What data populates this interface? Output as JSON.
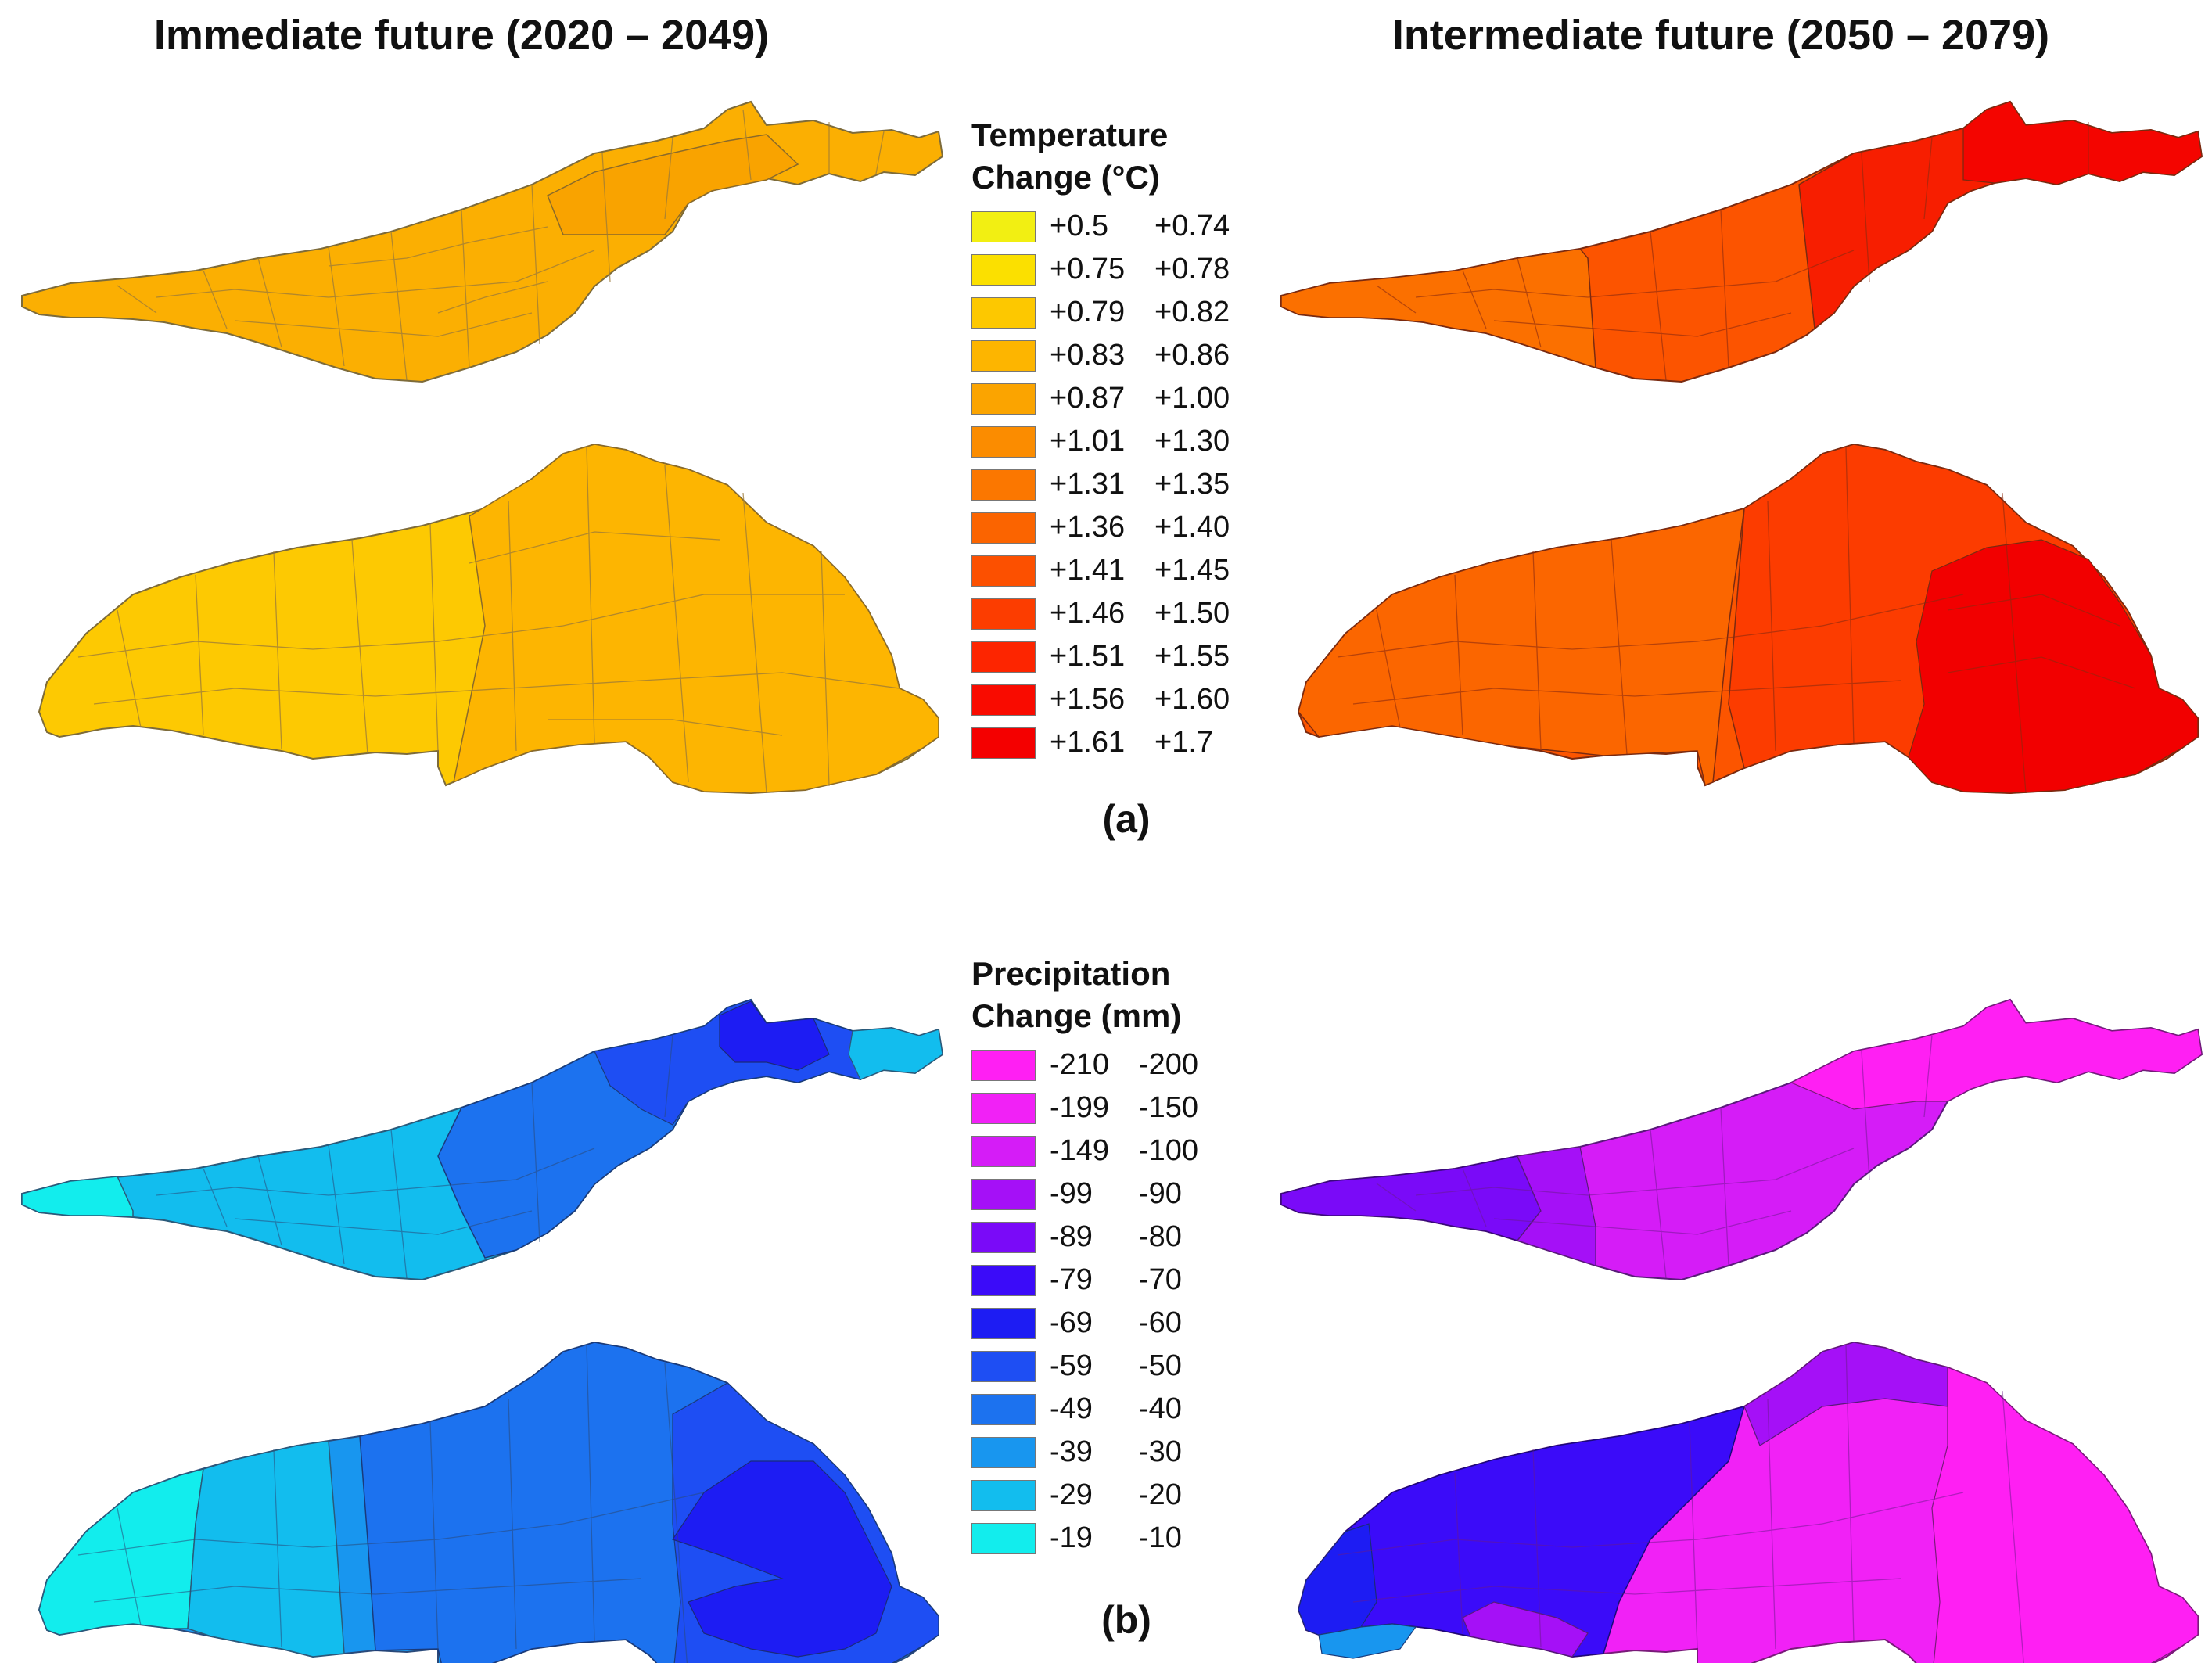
{
  "titles": {
    "left": "Immediate future (2020 – 2049)",
    "right": "Intermediate future (2050 – 2079)"
  },
  "panels": {
    "a": "(a)",
    "b": "(b)"
  },
  "temperature_legend": {
    "title_line1": "Temperature",
    "title_line2": "Change (°C)",
    "classes": [
      {
        "low": "+0.5",
        "high": "+0.74",
        "color": "#f2ef12"
      },
      {
        "low": "+0.75",
        "high": "+0.78",
        "color": "#fbe000"
      },
      {
        "low": "+0.79",
        "high": "+0.82",
        "color": "#fdc800"
      },
      {
        "low": "+0.83",
        "high": "+0.86",
        "color": "#fdb500"
      },
      {
        "low": "+0.87",
        "high": "+1.00",
        "color": "#fba400"
      },
      {
        "low": "+1.01",
        "high": "+1.30",
        "color": "#fb8c00"
      },
      {
        "low": "+1.31",
        "high": "+1.35",
        "color": "#fb7700"
      },
      {
        "low": "+1.36",
        "high": "+1.40",
        "color": "#fb6400"
      },
      {
        "low": "+1.41",
        "high": "+1.45",
        "color": "#fc5000"
      },
      {
        "low": "+1.46",
        "high": "+1.50",
        "color": "#fc3d00"
      },
      {
        "low": "+1.51",
        "high": "+1.55",
        "color": "#fd2500"
      },
      {
        "low": "+1.56",
        "high": "+1.60",
        "color": "#f90b00"
      },
      {
        "low": "+1.61",
        "high": "+1.7",
        "color": "#f40000"
      }
    ]
  },
  "precipitation_legend": {
    "title_line1": "Precipitation",
    "title_line2": "Change (mm)",
    "classes": [
      {
        "low": "-210",
        "high": "-200",
        "color": "#ff1ff3"
      },
      {
        "low": "-199",
        "high": "-150",
        "color": "#f121f6"
      },
      {
        "low": "-149",
        "high": "-100",
        "color": "#d51cf7"
      },
      {
        "low": "-99",
        "high": "-90",
        "color": "#a510f7"
      },
      {
        "low": "-89",
        "high": "-80",
        "color": "#7a0af8"
      },
      {
        "low": "-79",
        "high": "-70",
        "color": "#3b0bf9"
      },
      {
        "low": "-69",
        "high": "-60",
        "color": "#1d1cf3"
      },
      {
        "low": "-59",
        "high": "-50",
        "color": "#1e4ef3"
      },
      {
        "low": "-49",
        "high": "-40",
        "color": "#1c72ef"
      },
      {
        "low": "-39",
        "high": "-30",
        "color": "#1896ef"
      },
      {
        "low": "-29",
        "high": "-20",
        "color": "#12bdee"
      },
      {
        "low": "-19",
        "high": "-10",
        "color": "#12eded"
      }
    ]
  }
}
